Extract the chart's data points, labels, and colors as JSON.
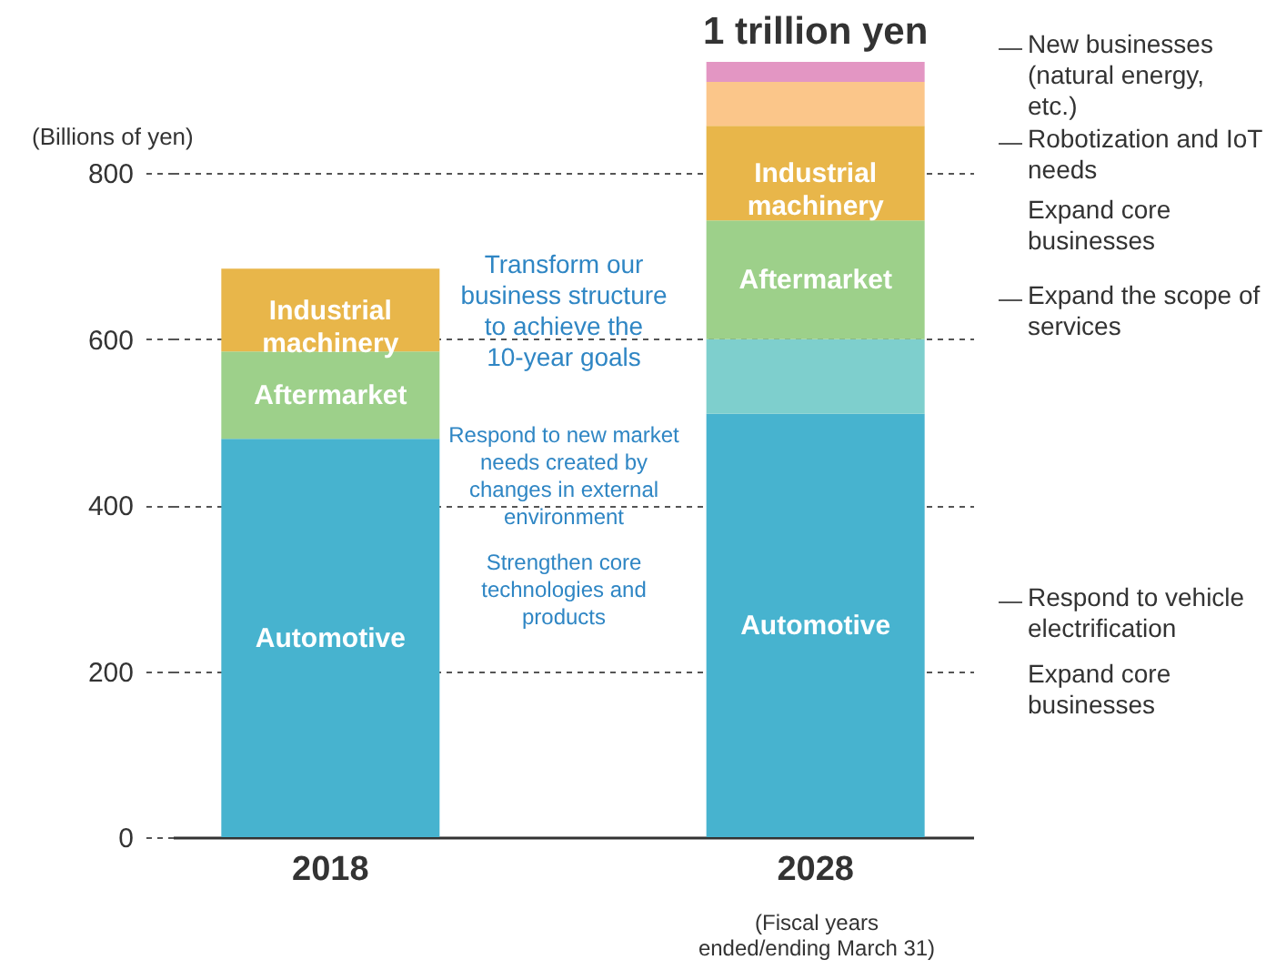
{
  "chart_data": {
    "type": "bar",
    "stacked": true,
    "ylabel": "(Billions of yen)",
    "categories": [
      "2018",
      "2028"
    ],
    "series": [
      {
        "name": "Automotive",
        "color": "#47b3cf",
        "values": [
          480,
          510
        ]
      },
      {
        "color": "#7ecfcd",
        "values": [
          null,
          90
        ]
      },
      {
        "name": "Aftermarket",
        "color": "#9dd08a",
        "values": [
          105,
          143
        ]
      },
      {
        "name": "Industrial machinery",
        "color": "#e8b64a",
        "values": [
          100,
          114
        ]
      },
      {
        "color": "#fbc68a",
        "values": [
          null,
          53
        ]
      },
      {
        "color": "#e396c3",
        "values": [
          null,
          24
        ]
      }
    ],
    "ylim": [
      0,
      934
    ],
    "yticks": [
      0,
      200,
      400,
      600,
      800
    ],
    "grid": "y",
    "legend": false,
    "annotations": [
      "1 trillion yen",
      "Transform our business structure to achieve the 10-year goals",
      "Respond to new market needs created by changes in external environment",
      "Strengthen core technologies and products",
      "New businesses (natural energy, etc.)",
      "Robotization and IoT needs",
      "Expand core businesses",
      "Expand the scope of services",
      "Respond to vehicle electrification",
      "Expand core businesses",
      "(Fiscal years ended/ending March 31)"
    ]
  }
}
